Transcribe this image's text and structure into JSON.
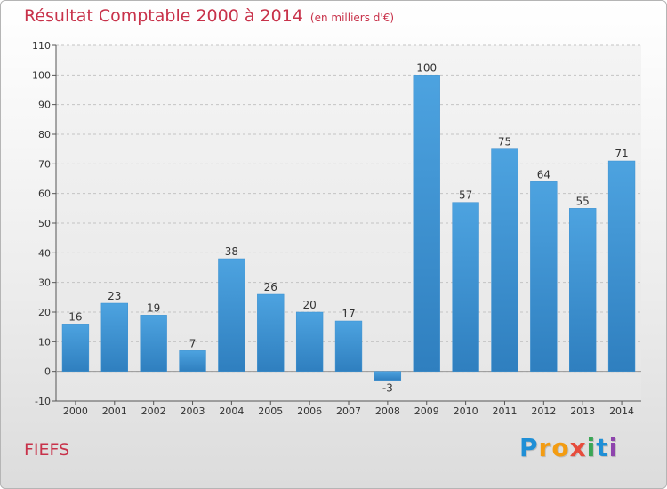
{
  "header": {
    "title": "Résultat Comptable 2000 à 2014",
    "unit": "(en milliers d'€)"
  },
  "footer": {
    "place": "FIEFS",
    "brand_letters": [
      "P",
      "r",
      "o",
      "x",
      "i",
      "t",
      "i"
    ],
    "brand_colors": [
      "#1f8fd6",
      "#f39c12",
      "#f39c12",
      "#e74c3c",
      "#3aa655",
      "#1f8fd6",
      "#8e44ad"
    ]
  },
  "chart_data": {
    "type": "bar",
    "title": "Résultat Comptable 2000 à 2014",
    "subtitle": "(en milliers d'€)",
    "xlabel": "",
    "ylabel": "",
    "categories": [
      "2000",
      "2001",
      "2002",
      "2003",
      "2004",
      "2005",
      "2006",
      "2007",
      "2008",
      "2009",
      "2010",
      "2011",
      "2012",
      "2013",
      "2014"
    ],
    "values": [
      16,
      23,
      19,
      7,
      38,
      26,
      20,
      17,
      -3,
      100,
      57,
      75,
      64,
      55,
      71
    ],
    "ylim": [
      -10,
      110
    ],
    "yticks": [
      -10,
      0,
      10,
      20,
      30,
      40,
      50,
      60,
      70,
      80,
      90,
      100,
      110
    ],
    "grid": true,
    "bar_color": "#4da3e0",
    "bar_color_dark": "#2f7fbf"
  }
}
